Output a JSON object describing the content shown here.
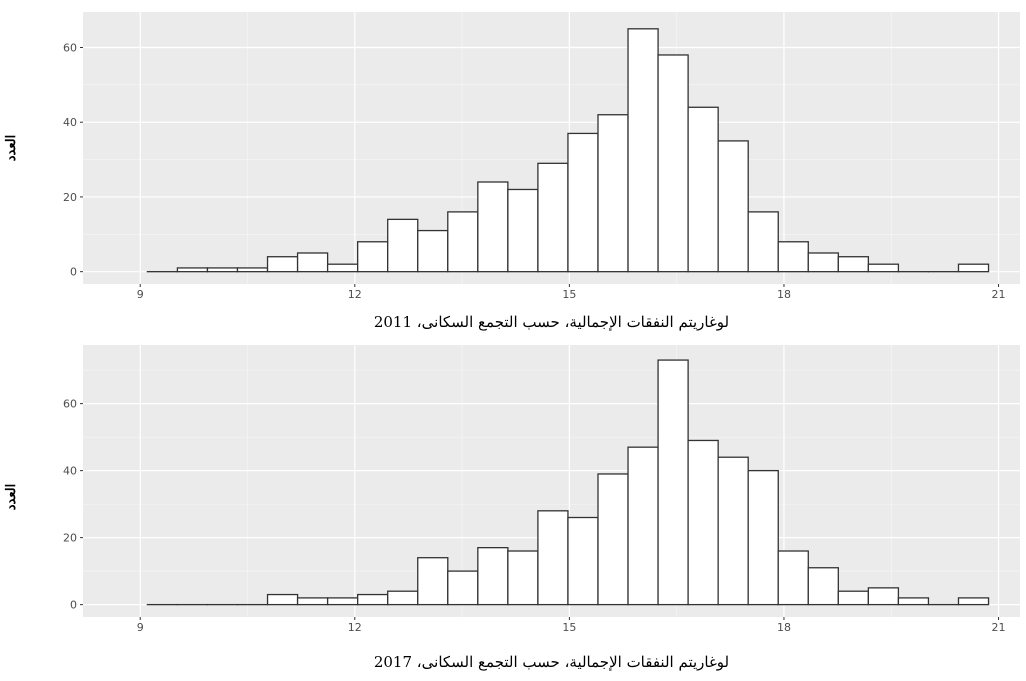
{
  "chart_data": [
    {
      "type": "bar",
      "xlabel": "لوغاريتم النفقات الإجمالية، حسب التجمع السكانى، 2011",
      "ylabel": "العدد",
      "xlim": [
        8.2,
        21.3
      ],
      "ylim": [
        -3.3,
        69.5
      ],
      "x_ticks": [
        9,
        12,
        15,
        18,
        21
      ],
      "y_ticks": [
        0,
        20,
        40,
        60
      ],
      "bin_width": 0.42,
      "bin_start": 9.1,
      "values": [
        0,
        1,
        1,
        1,
        4,
        5,
        2,
        8,
        14,
        11,
        16,
        24,
        22,
        29,
        37,
        42,
        65,
        58,
        44,
        35,
        16,
        8,
        5,
        4,
        2,
        0,
        0,
        2
      ],
      "grid": true,
      "background": "#ebebeb",
      "bar_fill": "#ffffff",
      "bar_stroke": "#333333"
    },
    {
      "type": "bar",
      "xlabel": "لوغاريتم النفقات الإجمالية، حسب التجمع السكانى، 2017",
      "ylabel": "العدد",
      "xlim": [
        8.2,
        21.3
      ],
      "ylim": [
        -3.7,
        77.5
      ],
      "x_ticks": [
        9,
        12,
        15,
        18,
        21
      ],
      "y_ticks": [
        0,
        20,
        40,
        60
      ],
      "bin_width": 0.42,
      "bin_start": 9.1,
      "values": [
        0,
        0,
        0,
        0,
        3,
        2,
        2,
        3,
        4,
        14,
        10,
        17,
        16,
        28,
        26,
        39,
        47,
        73,
        49,
        44,
        40,
        16,
        11,
        4,
        5,
        2,
        0,
        2
      ],
      "grid": true,
      "background": "#ebebeb",
      "bar_fill": "#ffffff",
      "bar_stroke": "#333333"
    }
  ]
}
